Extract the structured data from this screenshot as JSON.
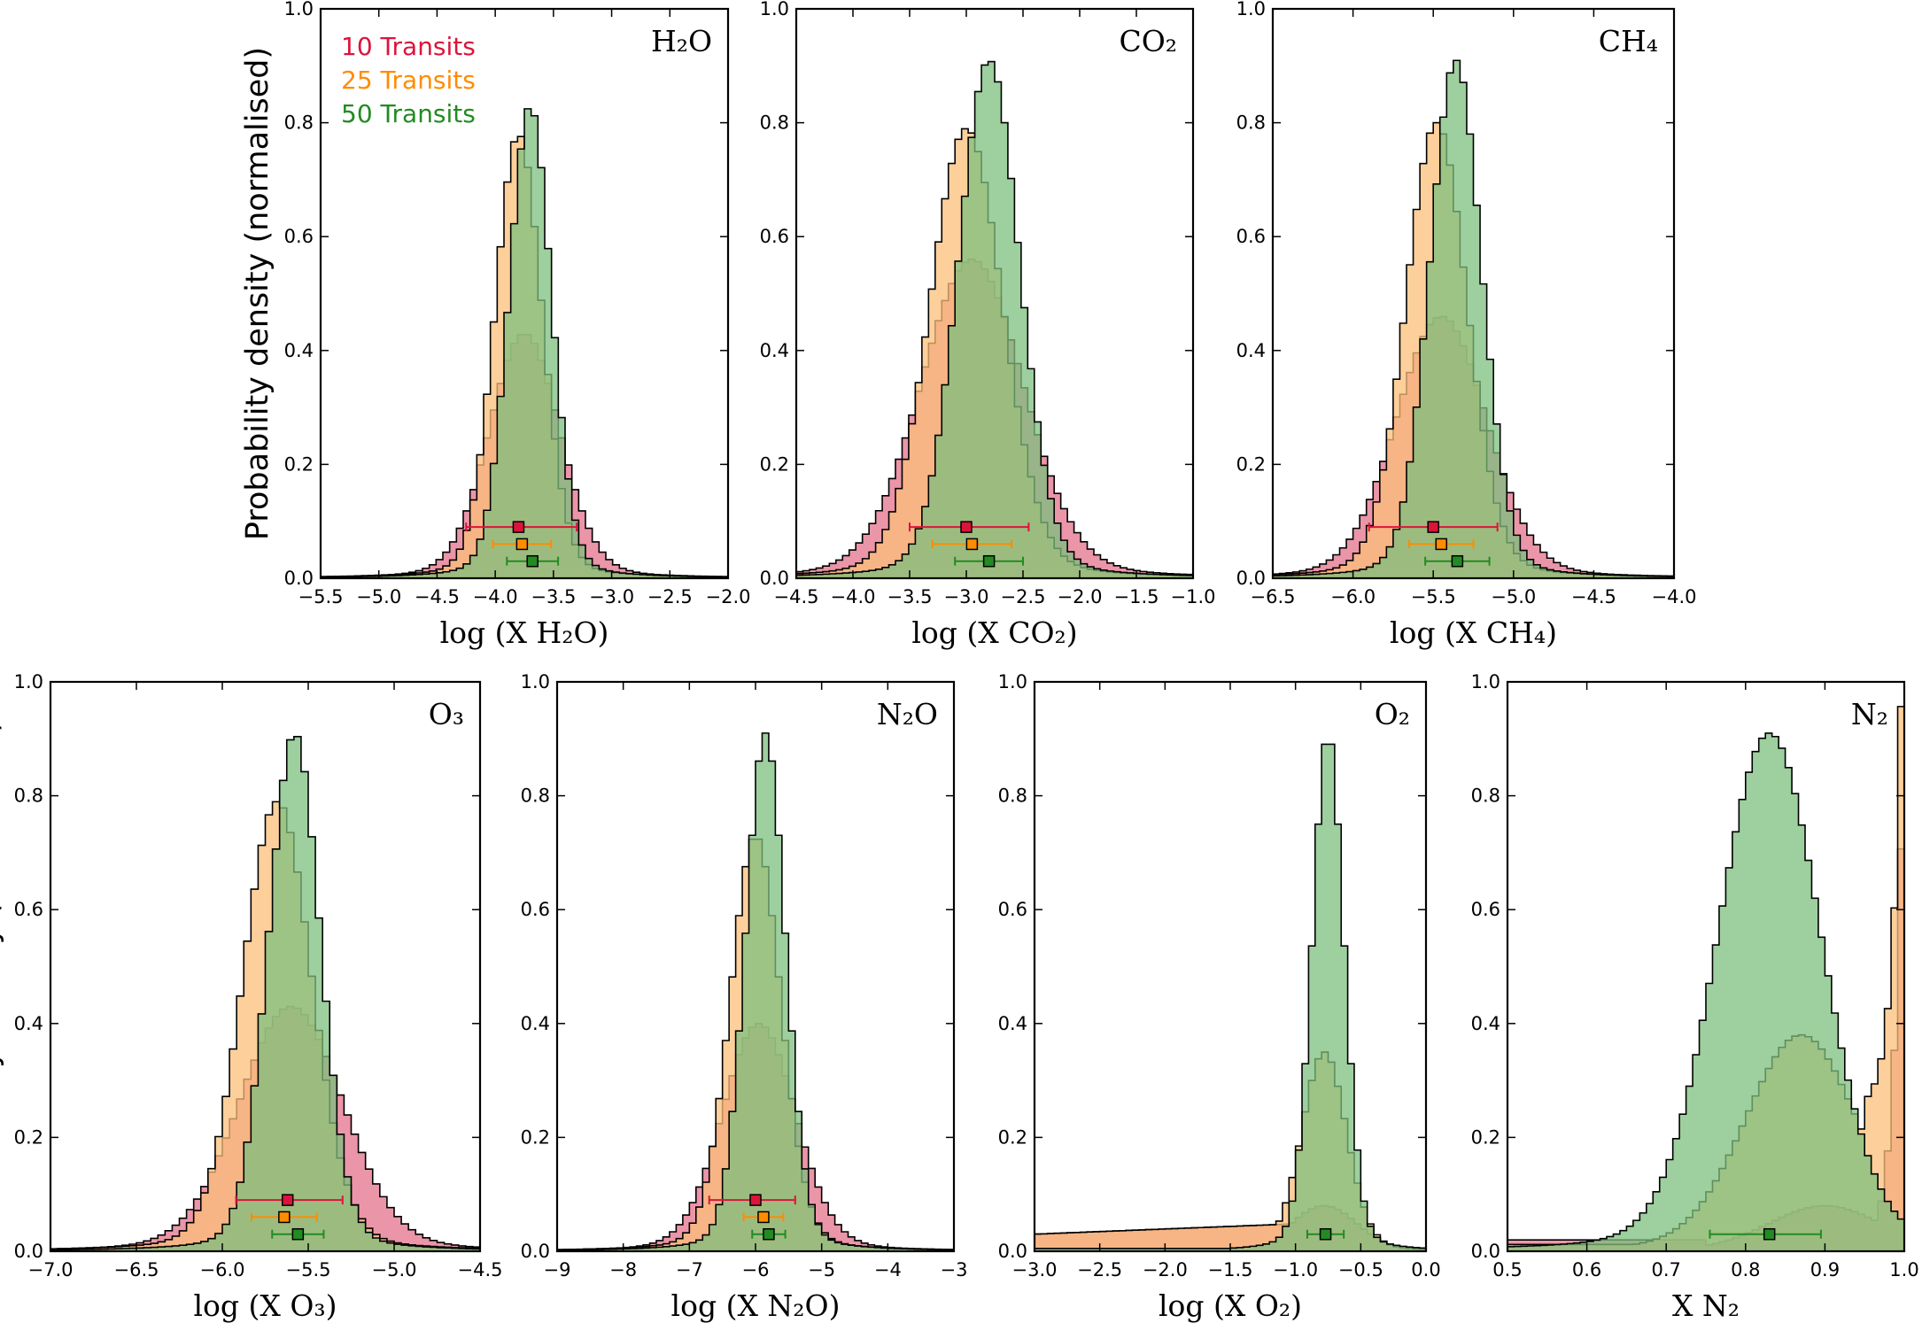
{
  "figure": {
    "shared_ylabel": "Probability density (normalised)",
    "legend": [
      {
        "label": "10 Transits",
        "color": "#dc143c",
        "fill": "#e98aa0"
      },
      {
        "label": "25 Transits",
        "color": "#ff8c00",
        "fill": "#fbbf7a"
      },
      {
        "label": "50 Transits",
        "color": "#228b22",
        "fill": "#7dbf7d"
      }
    ]
  },
  "chart_data": [
    {
      "type": "histogram",
      "title": "H₂O",
      "xlabel": "log (X H₂O)",
      "xlim": [
        -5.5,
        -2.0
      ],
      "ylim": [
        0,
        1.0
      ],
      "xticks": [
        "−5.5",
        "−5.0",
        "−4.5",
        "−4.0",
        "−3.5",
        "−3.0",
        "−2.5",
        "−2.0"
      ],
      "yticks": [
        "0.0",
        "0.2",
        "0.4",
        "0.6",
        "0.8",
        "1.0"
      ],
      "ylabel": "Probability density (normalised)",
      "show_legend": true,
      "series": [
        {
          "name": "10 Transits",
          "center": -3.75,
          "width": 0.3,
          "peak": 0.43,
          "median": -3.8,
          "err_low": 0.45,
          "err_high": 0.5,
          "marker_y": 0.09
        },
        {
          "name": "25 Transits",
          "center": -3.8,
          "width": 0.2,
          "peak": 0.78,
          "median": -3.77,
          "err_low": 0.25,
          "err_high": 0.25,
          "marker_y": 0.06
        },
        {
          "name": "50 Transits",
          "center": -3.7,
          "width": 0.18,
          "peak": 0.83,
          "median": -3.68,
          "err_low": 0.22,
          "err_high": 0.22,
          "marker_y": 0.03
        }
      ]
    },
    {
      "type": "histogram",
      "title": "CO₂",
      "xlabel": "log (X CO₂)",
      "xlim": [
        -4.5,
        -1.0
      ],
      "ylim": [
        0,
        1.0
      ],
      "xticks": [
        "−4.5",
        "−4.0",
        "−3.5",
        "−3.0",
        "−2.5",
        "−2.0",
        "−1.5",
        "−1.0"
      ],
      "yticks": [
        "0.0",
        "0.2",
        "0.4",
        "0.6",
        "0.8",
        "1.0"
      ],
      "show_legend": false,
      "series": [
        {
          "name": "10 Transits",
          "center": -2.95,
          "width": 0.45,
          "peak": 0.56,
          "median": -3.0,
          "err_low": 0.5,
          "err_high": 0.55,
          "marker_y": 0.09
        },
        {
          "name": "25 Transits",
          "center": -3.0,
          "width": 0.32,
          "peak": 0.79,
          "median": -2.95,
          "err_low": 0.35,
          "err_high": 0.35,
          "marker_y": 0.06
        },
        {
          "name": "50 Transits",
          "center": -2.8,
          "width": 0.27,
          "peak": 0.91,
          "median": -2.8,
          "err_low": 0.3,
          "err_high": 0.3,
          "marker_y": 0.03
        }
      ]
    },
    {
      "type": "histogram",
      "title": "CH₄",
      "xlabel": "log (X CH₄)",
      "xlim": [
        -6.5,
        -4.0
      ],
      "ylim": [
        0,
        1.0
      ],
      "xticks": [
        "−6.5",
        "−6.0",
        "−5.5",
        "−5.0",
        "−4.5",
        "−4.0"
      ],
      "yticks": [
        "0.0",
        "0.2",
        "0.4",
        "0.6",
        "0.8",
        "1.0"
      ],
      "show_legend": false,
      "series": [
        {
          "name": "10 Transits",
          "center": -5.45,
          "width": 0.28,
          "peak": 0.46,
          "median": -5.5,
          "err_low": 0.4,
          "err_high": 0.4,
          "marker_y": 0.09
        },
        {
          "name": "25 Transits",
          "center": -5.48,
          "width": 0.19,
          "peak": 0.8,
          "median": -5.45,
          "err_low": 0.2,
          "err_high": 0.2,
          "marker_y": 0.06
        },
        {
          "name": "50 Transits",
          "center": -5.36,
          "width": 0.16,
          "peak": 0.91,
          "median": -5.35,
          "err_low": 0.2,
          "err_high": 0.2,
          "marker_y": 0.03
        }
      ]
    },
    {
      "type": "histogram",
      "title": "O₃",
      "xlabel": "log (X O₃)",
      "xlim": [
        -7.0,
        -4.5
      ],
      "ylim": [
        0,
        1.0
      ],
      "xticks": [
        "−7.0",
        "−6.5",
        "−6.0",
        "−5.5",
        "−5.0",
        "−4.5"
      ],
      "yticks": [
        "0.0",
        "0.2",
        "0.4",
        "0.6",
        "0.8",
        "1.0"
      ],
      "ylabel": "Probability density (normalised)",
      "show_legend": false,
      "series": [
        {
          "name": "10 Transits",
          "center": -5.6,
          "width": 0.3,
          "peak": 0.43,
          "median": -5.62,
          "err_low": 0.3,
          "err_high": 0.32,
          "marker_y": 0.09
        },
        {
          "name": "25 Transits",
          "center": -5.68,
          "width": 0.2,
          "peak": 0.79,
          "median": -5.64,
          "err_low": 0.19,
          "err_high": 0.19,
          "marker_y": 0.06
        },
        {
          "name": "50 Transits",
          "center": -5.58,
          "width": 0.15,
          "peak": 0.91,
          "median": -5.56,
          "err_low": 0.15,
          "err_high": 0.15,
          "marker_y": 0.03
        }
      ]
    },
    {
      "type": "histogram",
      "title": "N₂O",
      "xlabel": "log (X N₂O)",
      "xlim": [
        -9,
        -3
      ],
      "ylim": [
        0,
        1.0
      ],
      "xticks": [
        "−9",
        "−8",
        "−7",
        "−6",
        "−5",
        "−4",
        "−3"
      ],
      "yticks": [
        "0.0",
        "0.2",
        "0.4",
        "0.6",
        "0.8",
        "1.0"
      ],
      "show_legend": false,
      "series": [
        {
          "name": "10 Transits",
          "center": -5.95,
          "width": 0.55,
          "peak": 0.4,
          "median": -6.0,
          "err_low": 0.7,
          "err_high": 0.6,
          "marker_y": 0.09
        },
        {
          "name": "25 Transits",
          "center": -6.0,
          "width": 0.38,
          "peak": 0.73,
          "median": -5.88,
          "err_low": 0.3,
          "err_high": 0.3,
          "marker_y": 0.06
        },
        {
          "name": "50 Transits",
          "center": -5.85,
          "width": 0.3,
          "peak": 0.91,
          "median": -5.8,
          "err_low": 0.25,
          "err_high": 0.25,
          "marker_y": 0.03
        }
      ]
    },
    {
      "type": "histogram",
      "title": "O₂",
      "xlabel": "log (X O₂)",
      "xlim": [
        -3.0,
        0.0
      ],
      "ylim": [
        0,
        1.0
      ],
      "xticks": [
        "−3.0",
        "−2.5",
        "−2.0",
        "−1.5",
        "−1.0",
        "−0.5",
        "0.0"
      ],
      "yticks": [
        "0.0",
        "0.2",
        "0.4",
        "0.6",
        "0.8",
        "1.0"
      ],
      "show_legend": false,
      "series": [
        {
          "name": "10 Transits",
          "center": -0.78,
          "width": 0.25,
          "peak": 0.08,
          "median": null,
          "marker_y": null
        },
        {
          "name": "25 Transits",
          "center": -0.78,
          "width": 0.17,
          "peak": 0.35,
          "median": null,
          "marker_y": null
        },
        {
          "name": "50 Transits",
          "center": -0.75,
          "width": 0.12,
          "peak": 0.91,
          "median": -0.77,
          "err_low": 0.14,
          "err_high": 0.14,
          "marker_y": 0.03
        }
      ]
    },
    {
      "type": "histogram",
      "title": "N₂",
      "xlabel": "X N₂",
      "xlim": [
        0.5,
        1.0
      ],
      "ylim": [
        0,
        1.0
      ],
      "xticks": [
        "0.5",
        "0.6",
        "0.7",
        "0.8",
        "0.9",
        "1.0"
      ],
      "yticks": [
        "0.0",
        "0.2",
        "0.4",
        "0.6",
        "0.8",
        "1.0"
      ],
      "show_legend": false,
      "series": [
        {
          "name": "10 Transits",
          "center": 0.9,
          "width": 0.07,
          "peak": 0.08,
          "median": null,
          "marker_y": null,
          "edge_peak": 1.0
        },
        {
          "name": "25 Transits",
          "center": 0.87,
          "width": 0.07,
          "peak": 0.38,
          "median": null,
          "marker_y": null,
          "edge_peak": 1.0
        },
        {
          "name": "50 Transits",
          "center": 0.83,
          "width": 0.065,
          "peak": 0.91,
          "median": 0.83,
          "err_low": 0.075,
          "err_high": 0.065,
          "marker_y": 0.03
        }
      ]
    }
  ]
}
